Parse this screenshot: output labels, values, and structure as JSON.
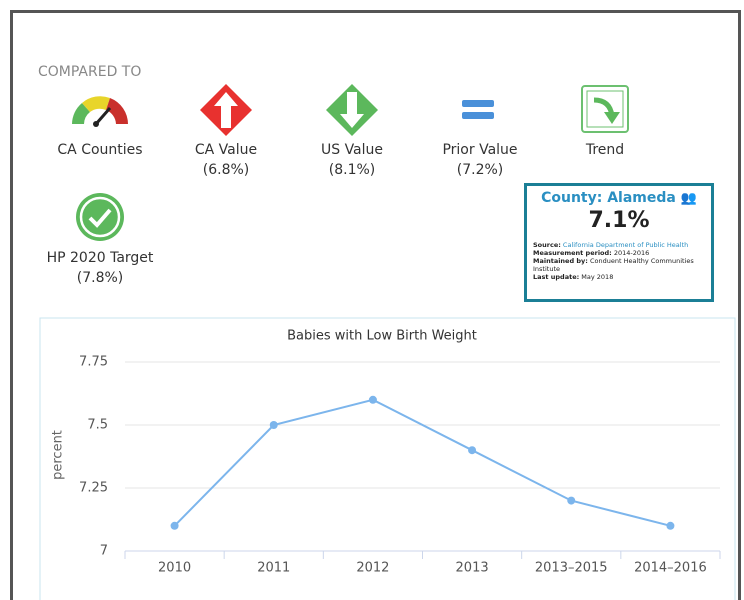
{
  "compared_to": {
    "heading": "COMPARED TO",
    "items": [
      {
        "label": "CA Counties"
      },
      {
        "label": "CA Value",
        "value": "(6.8%)"
      },
      {
        "label": "US Value",
        "value": "(8.1%)"
      },
      {
        "label": "Prior Value",
        "value": "(7.2%)"
      },
      {
        "label": "Trend"
      },
      {
        "label": "HP 2020 Target",
        "value": "(7.8%)"
      }
    ]
  },
  "tooltip": {
    "title": "County: Alameda",
    "value": "7.1%",
    "details": [
      {
        "key": "Source:",
        "text": "California Department of Public Health"
      },
      {
        "key": "Measurement period:",
        "text": "2014-2016"
      },
      {
        "key": "Maintained by:",
        "text": "Conduent Healthy Communities Institute"
      },
      {
        "key": "Last update:",
        "text": "May 2018"
      }
    ]
  },
  "chart_data": {
    "type": "line",
    "title": "Babies with Low Birth Weight",
    "y_label": "percent",
    "categories": [
      "2010",
      "2011",
      "2012",
      "2013",
      "2013–2015",
      "2014–2016"
    ],
    "values": [
      7.1,
      7.5,
      7.6,
      7.4,
      7.2,
      7.1
    ],
    "color": "#7cb5ec",
    "ylim": [
      7,
      7.75
    ],
    "yticks": [
      7,
      7.25,
      7.5,
      7.75
    ],
    "grid": true
  }
}
